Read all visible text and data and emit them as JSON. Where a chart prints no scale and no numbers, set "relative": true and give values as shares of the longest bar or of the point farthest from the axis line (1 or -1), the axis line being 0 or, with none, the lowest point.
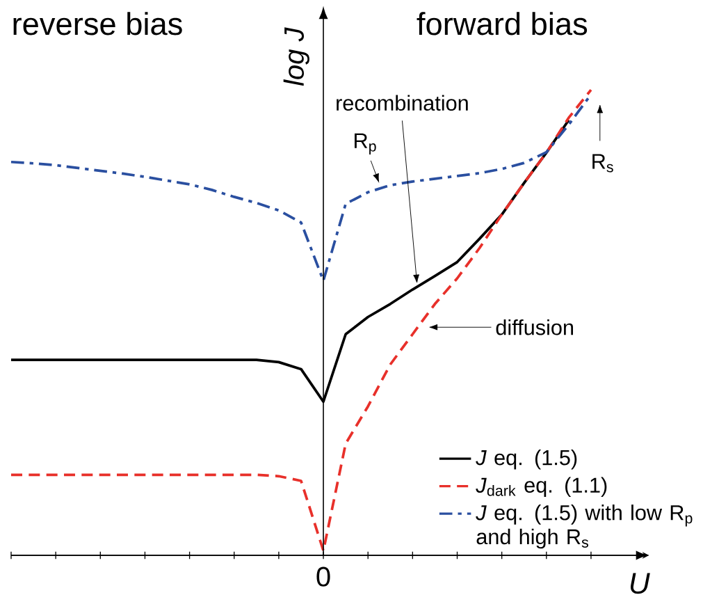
{
  "chart_data": {
    "type": "line",
    "relative": true,
    "xlabel": "U",
    "ylabel": "log J",
    "categories": [
      null,
      null,
      null,
      null,
      null,
      null,
      null,
      null,
      null,
      null,
      null,
      null,
      null,
      null,
      null,
      null,
      null,
      null,
      null,
      null,
      null,
      null,
      null,
      null,
      null,
      null,
      null
    ],
    "legend": "bottom right",
    "series": [
      {
        "name": "*J* eq. (1.5)",
        "color": "#000000",
        "line_style": "solid",
        "values": [
          0.42,
          0.42,
          0.42,
          0.42,
          0.42,
          0.42,
          0.42,
          0.42,
          0.42,
          0.42,
          0.42,
          0.42,
          0.415,
          0.4,
          0.33,
          0.475,
          0.512,
          0.54,
          0.571,
          0.6,
          0.63,
          0.68,
          0.732,
          0.8,
          0.865,
          0.935,
          null
        ]
      },
      {
        "name": "*J*$_{dark}$ eq. (1.1)",
        "color": "#e8302a",
        "line_style": "dashed",
        "values": [
          0.173,
          0.173,
          0.173,
          0.173,
          0.173,
          0.173,
          0.173,
          0.173,
          0.173,
          0.173,
          0.173,
          0.173,
          0.17,
          0.16,
          0.01,
          0.24,
          0.32,
          0.41,
          0.475,
          0.54,
          0.595,
          0.66,
          0.732,
          0.8,
          0.865,
          0.94,
          1.0
        ]
      },
      {
        "name": "*J* eq. (1.5) with low R$_{p}$ and high R$_{s}$",
        "color": "#2a4fa0",
        "line_style": "dashdot",
        "values": [
          0.845,
          0.842,
          0.838,
          0.832,
          0.826,
          0.82,
          0.813,
          0.805,
          0.797,
          0.785,
          0.77,
          0.757,
          0.741,
          0.715,
          0.59,
          0.755,
          0.78,
          0.795,
          0.803,
          0.809,
          0.815,
          0.821,
          0.83,
          0.843,
          0.866,
          0.925,
          0.99
        ]
      }
    ],
    "annotations": [
      "reverse bias",
      "forward bias",
      "0",
      "recombination",
      "R$_{p}$",
      "R$_{s}$",
      "diffusion"
    ]
  }
}
